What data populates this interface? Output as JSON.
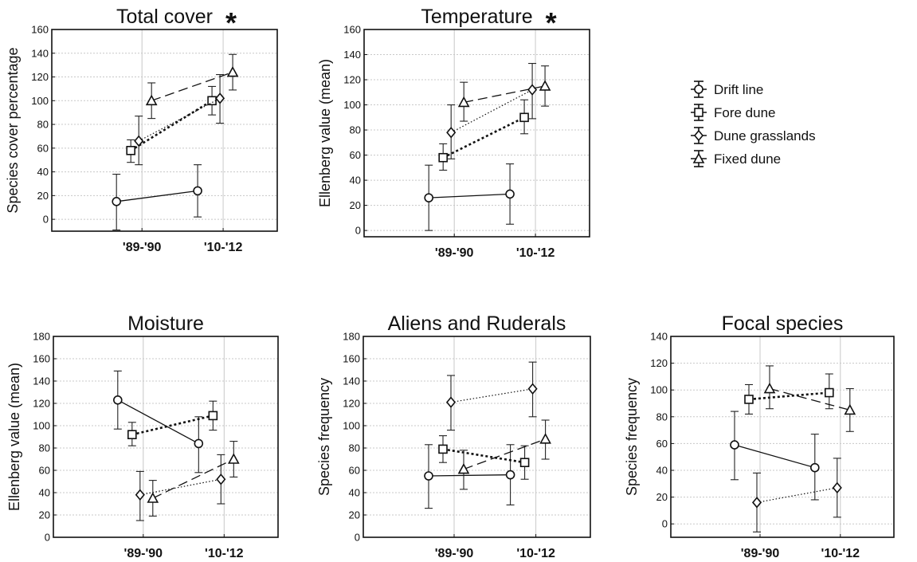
{
  "legend": {
    "items": [
      {
        "label": "Drift line",
        "marker": "circle",
        "dash": "solid"
      },
      {
        "label": "Fore dune",
        "marker": "square",
        "dash": "dotted-bold"
      },
      {
        "label": "Dune grasslands",
        "marker": "diamond",
        "dash": "dotted"
      },
      {
        "label": "Fixed dune",
        "marker": "triangle",
        "dash": "dashed"
      }
    ]
  },
  "chart_data": [
    {
      "type": "line",
      "title": "Total cover",
      "significance": "*",
      "ylabel": "Species cover percentage",
      "xlabel": "",
      "categories": [
        "'89-'90",
        "'10-'12"
      ],
      "ylim": [
        -10,
        160
      ],
      "yticks": [
        0,
        20,
        40,
        60,
        80,
        100,
        120,
        140,
        160
      ],
      "grid": true,
      "series": [
        {
          "name": "Drift line",
          "values": [
            15,
            24
          ],
          "errors": [
            [
              -9,
              38
            ],
            [
              2,
              46
            ]
          ]
        },
        {
          "name": "Fore dune",
          "values": [
            58,
            100
          ],
          "errors": [
            [
              48,
              67
            ],
            [
              88,
              112
            ]
          ]
        },
        {
          "name": "Dune grasslands",
          "values": [
            66,
            102
          ],
          "errors": [
            [
              46,
              87
            ],
            [
              81,
              122
            ]
          ]
        },
        {
          "name": "Fixed dune",
          "values": [
            100,
            124
          ],
          "errors": [
            [
              85,
              115
            ],
            [
              109,
              139
            ]
          ]
        }
      ]
    },
    {
      "type": "line",
      "title": "Temperature",
      "significance": "*",
      "ylabel": "Ellenberg value (mean)",
      "xlabel": "",
      "categories": [
        "'89-'90",
        "'10-'12"
      ],
      "ylim": [
        -5,
        160
      ],
      "yticks": [
        0,
        20,
        40,
        60,
        80,
        100,
        120,
        140,
        160
      ],
      "grid": true,
      "series": [
        {
          "name": "Drift line",
          "values": [
            26,
            29
          ],
          "errors": [
            [
              0,
              52
            ],
            [
              5,
              53
            ]
          ]
        },
        {
          "name": "Fore dune",
          "values": [
            58,
            90
          ],
          "errors": [
            [
              48,
              69
            ],
            [
              77,
              104
            ]
          ]
        },
        {
          "name": "Dune grasslands",
          "values": [
            78,
            112
          ],
          "errors": [
            [
              57,
              100
            ],
            [
              89,
              133
            ]
          ]
        },
        {
          "name": "Fixed dune",
          "values": [
            102,
            115
          ],
          "errors": [
            [
              87,
              118
            ],
            [
              99,
              131
            ]
          ]
        }
      ]
    },
    {
      "type": "line",
      "title": "Moisture",
      "significance": "",
      "ylabel": "Ellenberg value (mean)",
      "xlabel": "",
      "categories": [
        "'89-'90",
        "'10-'12"
      ],
      "ylim": [
        0,
        180
      ],
      "yticks": [
        0,
        20,
        40,
        60,
        80,
        100,
        120,
        140,
        160,
        180
      ],
      "grid": true,
      "series": [
        {
          "name": "Drift line",
          "values": [
            123,
            84
          ],
          "errors": [
            [
              97,
              149
            ],
            [
              58,
              108
            ]
          ]
        },
        {
          "name": "Fore dune",
          "values": [
            92,
            109
          ],
          "errors": [
            [
              82,
              103
            ],
            [
              96,
              122
            ]
          ]
        },
        {
          "name": "Dune grasslands",
          "values": [
            38,
            52
          ],
          "errors": [
            [
              15,
              59
            ],
            [
              30,
              74
            ]
          ]
        },
        {
          "name": "Fixed dune",
          "values": [
            35,
            70
          ],
          "errors": [
            [
              19,
              51
            ],
            [
              54,
              86
            ]
          ]
        }
      ]
    },
    {
      "type": "line",
      "title": "Aliens and Ruderals",
      "significance": "",
      "ylabel": "Species frequency",
      "xlabel": "",
      "categories": [
        "'89-'90",
        "'10-'12"
      ],
      "ylim": [
        0,
        180
      ],
      "yticks": [
        0,
        20,
        40,
        60,
        80,
        100,
        120,
        140,
        160,
        180
      ],
      "grid": true,
      "series": [
        {
          "name": "Drift line",
          "values": [
            55,
            56
          ],
          "errors": [
            [
              26,
              83
            ],
            [
              29,
              83
            ]
          ]
        },
        {
          "name": "Fore dune",
          "values": [
            79,
            67
          ],
          "errors": [
            [
              67,
              91
            ],
            [
              52,
              82
            ]
          ]
        },
        {
          "name": "Dune grasslands",
          "values": [
            121,
            133
          ],
          "errors": [
            [
              96,
              145
            ],
            [
              108,
              157
            ]
          ]
        },
        {
          "name": "Fixed dune",
          "values": [
            61,
            88
          ],
          "errors": [
            [
              43,
              78
            ],
            [
              70,
              105
            ]
          ]
        }
      ]
    },
    {
      "type": "line",
      "title": "Focal species",
      "significance": "",
      "ylabel": "Species frequency",
      "xlabel": "",
      "categories": [
        "'89-'90",
        "'10-'12"
      ],
      "ylim": [
        -10,
        140
      ],
      "yticks": [
        0,
        20,
        40,
        60,
        80,
        100,
        120,
        140
      ],
      "grid": true,
      "series": [
        {
          "name": "Drift line",
          "values": [
            59,
            42
          ],
          "errors": [
            [
              33,
              84
            ],
            [
              18,
              67
            ]
          ]
        },
        {
          "name": "Fore dune",
          "values": [
            93,
            98
          ],
          "errors": [
            [
              82,
              104
            ],
            [
              86,
              112
            ]
          ]
        },
        {
          "name": "Dune grasslands",
          "values": [
            16,
            27
          ],
          "errors": [
            [
              -6,
              38
            ],
            [
              5,
              49
            ]
          ]
        },
        {
          "name": "Fixed dune",
          "values": [
            101,
            85
          ],
          "errors": [
            [
              86,
              118
            ],
            [
              69,
              101
            ]
          ]
        }
      ]
    }
  ]
}
